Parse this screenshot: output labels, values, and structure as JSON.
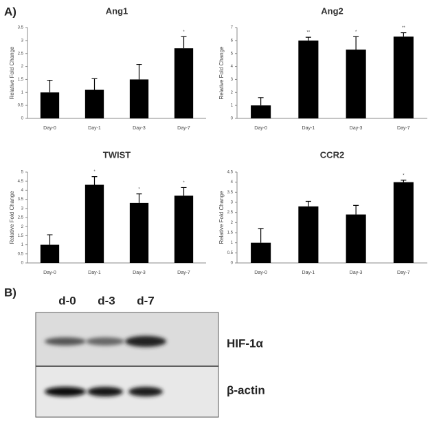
{
  "figure": {
    "panel_a": "A)",
    "panel_b": "B)"
  },
  "chart_data": [
    {
      "type": "bar",
      "title": "Ang1",
      "y_label": "Relative Fold Change",
      "categories": [
        "Day-0",
        "Day-1",
        "Day-3",
        "Day-7"
      ],
      "values": [
        1.0,
        1.1,
        1.5,
        2.7
      ],
      "errors": [
        0.47,
        0.43,
        0.58,
        0.45
      ],
      "significance": [
        null,
        null,
        null,
        "*"
      ],
      "color": "#000000",
      "ylim": [
        0,
        3.5
      ],
      "yticks": [
        0,
        0.5,
        1,
        1.5,
        2,
        2.5,
        3,
        3.5
      ]
    },
    {
      "type": "bar",
      "title": "Ang2",
      "y_label": "Relative Fold Change",
      "categories": [
        "Day-0",
        "Day-1",
        "Day-3",
        "Day-7"
      ],
      "values": [
        1.0,
        6.0,
        5.3,
        6.3
      ],
      "errors": [
        0.6,
        0.25,
        1.0,
        0.3
      ],
      "significance": [
        null,
        "**",
        "*",
        "**"
      ],
      "color": "#000000",
      "ylim": [
        0,
        7
      ],
      "yticks": [
        0,
        1,
        2,
        3,
        4,
        5,
        6,
        7
      ]
    },
    {
      "type": "bar",
      "title": "TWIST",
      "y_label": "Relative Fold Change",
      "categories": [
        "Day-0",
        "Day-1",
        "Day-3",
        "Day-7"
      ],
      "values": [
        1.0,
        4.3,
        3.3,
        3.7
      ],
      "errors": [
        0.55,
        0.45,
        0.5,
        0.45
      ],
      "significance": [
        null,
        "*",
        "*",
        "*"
      ],
      "color": "#000000",
      "ylim": [
        0,
        5
      ],
      "yticks": [
        0,
        0.5,
        1,
        1.5,
        2,
        2.5,
        3,
        3.5,
        4,
        4.5,
        5
      ]
    },
    {
      "type": "bar",
      "title": "CCR2",
      "y_label": "Relative Fold Change",
      "categories": [
        "Day-0",
        "Day-1",
        "Day-3",
        "Day-7"
      ],
      "values": [
        1.0,
        2.8,
        2.4,
        4.0
      ],
      "errors": [
        0.7,
        0.25,
        0.45,
        0.1
      ],
      "significance": [
        null,
        null,
        null,
        "*"
      ],
      "color": "#000000",
      "ylim": [
        0,
        4.5
      ],
      "yticks": [
        0,
        0.5,
        1,
        1.5,
        2,
        2.5,
        3,
        3.5,
        4,
        4.5
      ]
    }
  ],
  "blot": {
    "lanes": [
      "d-0",
      "d-3",
      "d-7"
    ],
    "bands": [
      "HIF-1α",
      "β-actin"
    ]
  }
}
